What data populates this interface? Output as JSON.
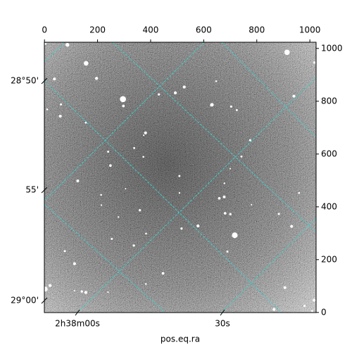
{
  "chart_data": {
    "type": "image",
    "xlabel": "pos.eq.ra",
    "xlim": [
      -0.5,
      1023.5
    ],
    "xticks": [
      0,
      200,
      400,
      600,
      800,
      1000
    ],
    "ylim": [
      -0.5,
      1023.5
    ],
    "yticks": [
      0,
      200,
      400,
      600,
      800,
      1000
    ],
    "ra_ticks": [
      "2h38m00s",
      "30s"
    ],
    "dec_ticks": [
      "28°50'",
      "55'",
      "29°00'"
    ],
    "grid_color": "#40d0d0"
  }
}
